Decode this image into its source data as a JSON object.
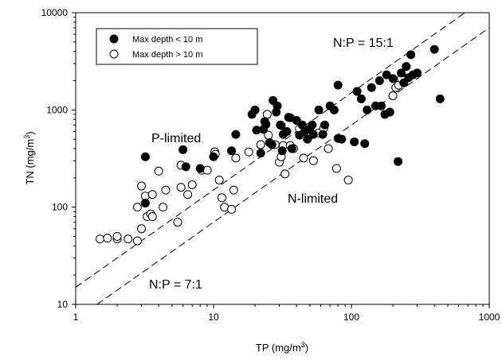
{
  "chart_data": {
    "type": "scatter",
    "x_scale": "log",
    "y_scale": "log",
    "xlim": [
      1,
      1000
    ],
    "ylim": [
      10,
      10000
    ],
    "x_ticks": [
      "1",
      "10",
      "100",
      "1000"
    ],
    "y_ticks": [
      "10",
      "100",
      "1000",
      "10000"
    ],
    "grid": false,
    "legend_position": "top-left",
    "colors": {
      "axis": "#000000",
      "shallow_fill": "#000000",
      "deep_fill": "#ffffff"
    },
    "xlabel": {
      "pre": "TP (mg/m",
      "sup": "3",
      "post": ")"
    },
    "ylabel": {
      "pre": "TN (mg/m",
      "sup": "3",
      "post": ")"
    },
    "series": [
      {
        "name": "Max depth < 10 m",
        "marker": "filled-circle",
        "points": [
          [
            3.2,
            330
          ],
          [
            3.2,
            110
          ],
          [
            6,
            390
          ],
          [
            6.3,
            260
          ],
          [
            8,
            250
          ],
          [
            10,
            330
          ],
          [
            13.5,
            380
          ],
          [
            14.5,
            560
          ],
          [
            19,
            900
          ],
          [
            20,
            1000
          ],
          [
            20.5,
            620
          ],
          [
            22,
            360
          ],
          [
            23,
            630
          ],
          [
            23.5,
            760
          ],
          [
            24,
            710
          ],
          [
            25.5,
            460
          ],
          [
            26.5,
            440
          ],
          [
            27,
            1250
          ],
          [
            28.5,
            950
          ],
          [
            29,
            1100
          ],
          [
            30.5,
            700
          ],
          [
            31,
            690
          ],
          [
            31.5,
            380
          ],
          [
            32,
            560
          ],
          [
            34,
            600
          ],
          [
            35,
            840
          ],
          [
            36,
            830
          ],
          [
            37,
            400
          ],
          [
            40,
            780
          ],
          [
            42,
            550
          ],
          [
            44,
            700
          ],
          [
            46,
            600
          ],
          [
            48,
            500
          ],
          [
            50,
            640
          ],
          [
            52,
            700
          ],
          [
            53,
            560
          ],
          [
            58,
            1000
          ],
          [
            62,
            560
          ],
          [
            64,
            700
          ],
          [
            70,
            1100
          ],
          [
            75,
            1000
          ],
          [
            80,
            510
          ],
          [
            80,
            1800
          ],
          [
            85,
            500
          ],
          [
            105,
            470
          ],
          [
            110,
            1550
          ],
          [
            118,
            1300
          ],
          [
            125,
            450
          ],
          [
            130,
            1000
          ],
          [
            140,
            1700
          ],
          [
            150,
            1100
          ],
          [
            160,
            2000
          ],
          [
            165,
            1100
          ],
          [
            175,
            900
          ],
          [
            180,
            2300
          ],
          [
            190,
            950
          ],
          [
            200,
            2100
          ],
          [
            218,
            295
          ],
          [
            230,
            2400
          ],
          [
            240,
            1900
          ],
          [
            250,
            2800
          ],
          [
            260,
            2150
          ],
          [
            270,
            3700
          ],
          [
            280,
            2300
          ],
          [
            300,
            2400
          ],
          [
            400,
            4200
          ],
          [
            440,
            1300
          ]
        ]
      },
      {
        "name": "Max depth > 10 m",
        "marker": "open-circle",
        "points": [
          [
            1.5,
            47
          ],
          [
            1.7,
            48
          ],
          [
            2,
            47
          ],
          [
            2,
            50
          ],
          [
            2.4,
            47
          ],
          [
            2.8,
            45
          ],
          [
            2.8,
            100
          ],
          [
            3,
            60
          ],
          [
            3,
            165
          ],
          [
            3.2,
            130
          ],
          [
            3.3,
            80
          ],
          [
            3.5,
            85
          ],
          [
            3.6,
            80
          ],
          [
            3.6,
            135
          ],
          [
            4,
            235
          ],
          [
            4.3,
            100
          ],
          [
            4.5,
            150
          ],
          [
            5.5,
            70
          ],
          [
            5.8,
            160
          ],
          [
            5.8,
            270
          ],
          [
            6.5,
            135
          ],
          [
            7,
            170
          ],
          [
            8.2,
            240
          ],
          [
            9,
            240
          ],
          [
            10.2,
            370
          ],
          [
            10.3,
            350
          ],
          [
            11,
            190
          ],
          [
            11.5,
            125
          ],
          [
            12,
            100
          ],
          [
            13.5,
            95
          ],
          [
            14,
            150
          ],
          [
            14.5,
            320
          ],
          [
            18,
            370
          ],
          [
            22,
            440
          ],
          [
            24.5,
            900
          ],
          [
            25,
            550
          ],
          [
            28,
            440
          ],
          [
            30,
            290
          ],
          [
            31,
            330
          ],
          [
            32,
            430
          ],
          [
            33,
            220
          ],
          [
            36,
            430
          ],
          [
            38,
            400
          ],
          [
            42,
            640
          ],
          [
            45,
            320
          ],
          [
            50,
            550
          ],
          [
            53,
            300
          ],
          [
            58,
            580
          ],
          [
            63,
            650
          ],
          [
            68,
            400
          ],
          [
            78,
            250
          ],
          [
            95,
            190
          ],
          [
            200,
            1400
          ],
          [
            210,
            1700
          ],
          [
            220,
            1800
          ],
          [
            230,
            2100
          ]
        ]
      }
    ],
    "reference_lines": [
      {
        "label": "N:P = 15:1",
        "ratio": 15
      },
      {
        "label": "N:P = 7:1",
        "ratio": 7
      }
    ],
    "annotations": [
      {
        "text": "P-limited"
      },
      {
        "text": "N-limited"
      }
    ]
  }
}
